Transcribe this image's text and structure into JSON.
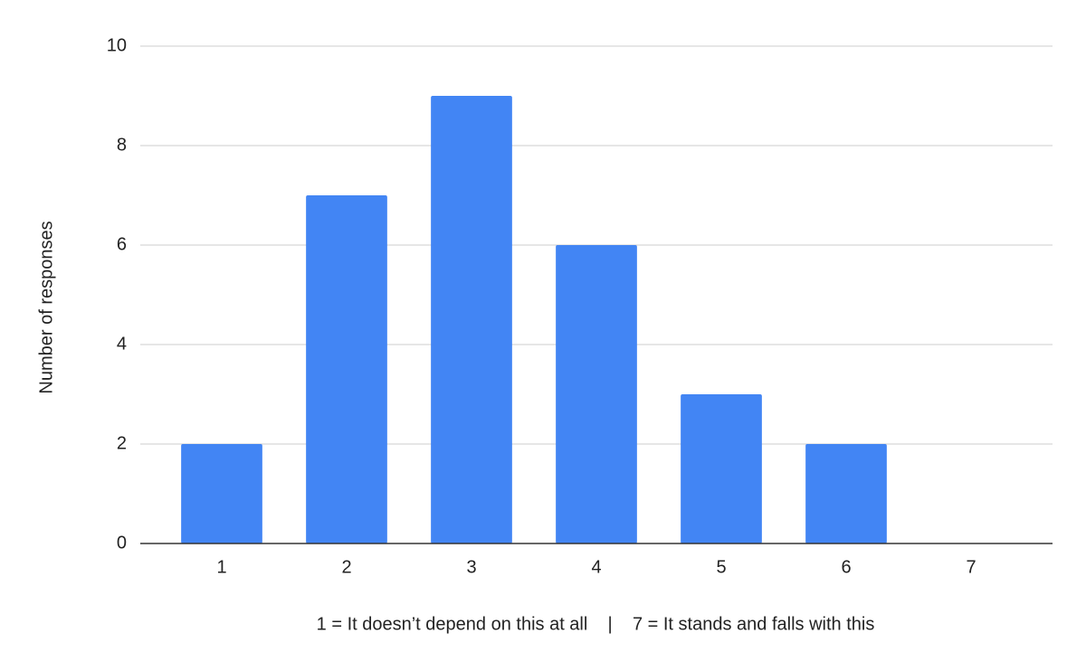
{
  "chart_data": {
    "type": "bar",
    "categories": [
      "1",
      "2",
      "3",
      "4",
      "5",
      "6",
      "7"
    ],
    "values": [
      2,
      7,
      9,
      6,
      3,
      2,
      0
    ],
    "color": "#4285f4",
    "ylim": [
      0,
      10
    ],
    "yticks": [
      0,
      2,
      4,
      6,
      8,
      10
    ],
    "grid": true,
    "xlabel": "1 = It doesn’t depend on this at all    |    7 = It stands and falls with this",
    "ylabel": "Number of responses"
  }
}
